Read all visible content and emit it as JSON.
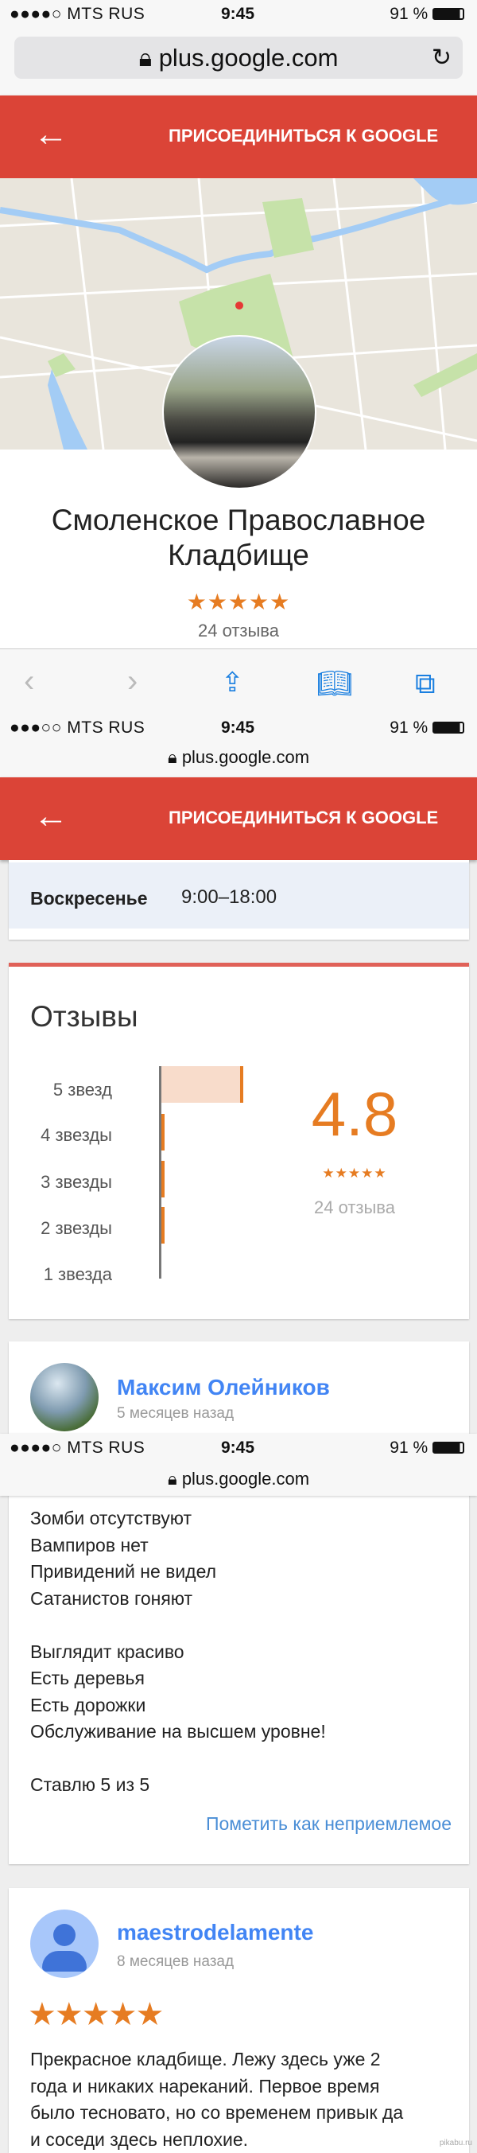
{
  "status_bar": {
    "carrier_1": "●●●●○ MTS RUS",
    "carrier_2": "●●●○○ MTS RUS",
    "carrier_3": "●●●●○ MTS RUS",
    "time": "9:45",
    "battery": "91 %"
  },
  "browser": {
    "url": "plus.google.com"
  },
  "header": {
    "join_label": "ПРИСОЕДИНИТЬСЯ К GOOGLE"
  },
  "place": {
    "name_line1": "Смоленское Православное",
    "name_line2": "Кладбище",
    "stars": "★★★★★",
    "review_count": "24 отзыва",
    "rating_value": 5
  },
  "hours": {
    "day": "Воскресенье",
    "time": "9:00–18:00"
  },
  "reviews_summary": {
    "title": "Отзывы",
    "rating": "4.8",
    "stars": "★★★★★",
    "count": "24 отзыва",
    "rows": [
      {
        "label": "5 звезд",
        "fraction": 1.0
      },
      {
        "label": "4 звезды",
        "fraction": 0.02
      },
      {
        "label": "3 звезды",
        "fraction": 0.02
      },
      {
        "label": "2 звезды",
        "fraction": 0.02
      },
      {
        "label": "1 звезда",
        "fraction": 0
      }
    ]
  },
  "review1": {
    "author": "Максим Олейников",
    "ago": "5 месяцев назад",
    "text": "Зомби отсутствуют\nВампиров нет\nПривидений не видел\nСатанистов гоняют\n\nВыглядит красиво\nЕсть деревья\nЕсть дорожки\nОбслуживание на высшем уровне!\n\nСтавлю 5 из 5",
    "flag": "Пометить как неприемлемое"
  },
  "review2": {
    "author": "maestrodelamente",
    "ago": "8 месяцев назад",
    "stars": "★★★★★",
    "text": "Прекрасное кладбище. Лежу здесь уже 2\nгода и никаких нареканий. Первое время\nбыло тесновато, но со временем привык да\nи соседи здесь неплохие."
  },
  "watermark": "pikabu.ru",
  "colors": {
    "header": "#db4437",
    "accent": "#e67c22",
    "link": "#4285f4"
  }
}
